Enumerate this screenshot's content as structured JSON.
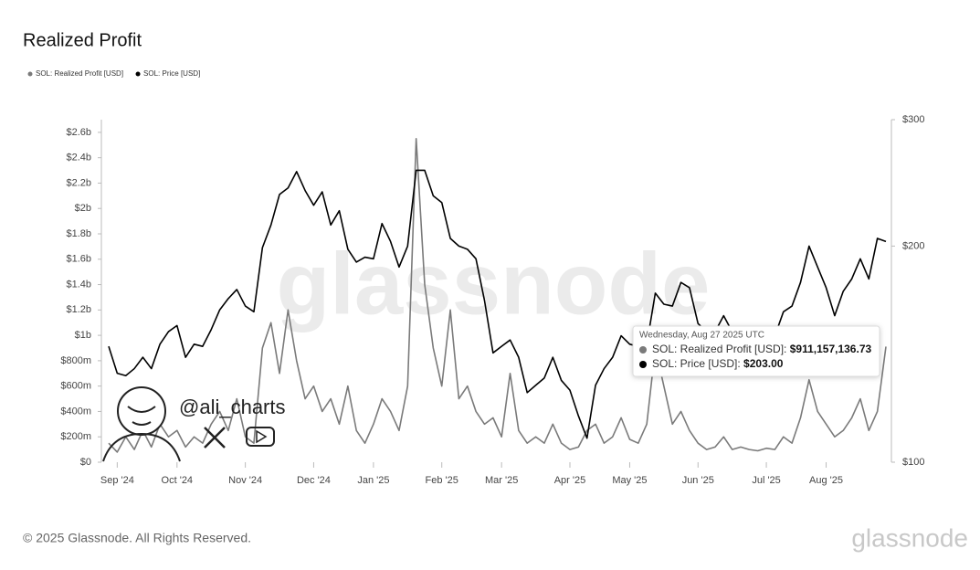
{
  "chart_data": {
    "type": "line",
    "title": "Realized Profit",
    "categories": [
      null,
      "Sep '24",
      null,
      null,
      null,
      null,
      null,
      null,
      "Oct '24",
      null,
      null,
      null,
      null,
      null,
      null,
      null,
      "Nov '24",
      null,
      null,
      null,
      null,
      null,
      null,
      null,
      "Dec '24",
      null,
      null,
      null,
      null,
      null,
      null,
      "Jan '25",
      null,
      null,
      null,
      null,
      null,
      null,
      null,
      "Feb '25",
      null,
      null,
      null,
      null,
      null,
      null,
      "Mar '25",
      null,
      null,
      null,
      null,
      null,
      null,
      null,
      "Apr '25",
      null,
      null,
      null,
      null,
      null,
      null,
      "May '25",
      null,
      null,
      null,
      null,
      null,
      null,
      null,
      "Jun '25",
      null,
      null,
      null,
      null,
      null,
      null,
      null,
      "Jul '25",
      null,
      null,
      null,
      null,
      null,
      null,
      "Aug '25",
      null,
      null,
      null,
      null,
      null,
      null,
      null
    ],
    "series": [
      {
        "name": "SOL: Realized Profit [USD]",
        "color": "#7a7a7a",
        "axis": "y",
        "values": [
          150000000,
          80000000,
          200000000,
          100000000,
          250000000,
          120000000,
          300000000,
          200000000,
          250000000,
          120000000,
          200000000,
          150000000,
          300000000,
          400000000,
          250000000,
          500000000,
          200000000,
          150000000,
          900000000,
          1100000000,
          700000000,
          1200000000,
          800000000,
          500000000,
          600000000,
          400000000,
          500000000,
          300000000,
          600000000,
          250000000,
          150000000,
          300000000,
          500000000,
          400000000,
          250000000,
          600000000,
          2550000000,
          1400000000,
          900000000,
          600000000,
          1200000000,
          500000000,
          600000000,
          400000000,
          300000000,
          350000000,
          200000000,
          700000000,
          250000000,
          150000000,
          200000000,
          150000000,
          300000000,
          150000000,
          100000000,
          120000000,
          250000000,
          300000000,
          150000000,
          200000000,
          350000000,
          180000000,
          150000000,
          300000000,
          900000000,
          600000000,
          300000000,
          400000000,
          250000000,
          150000000,
          100000000,
          120000000,
          200000000,
          100000000,
          120000000,
          100000000,
          90000000,
          110000000,
          100000000,
          200000000,
          150000000,
          350000000,
          650000000,
          400000000,
          300000000,
          200000000,
          250000000,
          350000000,
          500000000,
          250000000,
          400000000,
          911157136.73
        ]
      },
      {
        "name": "SOL: Price [USD]",
        "color": "#000000",
        "axis": "y2",
        "values": [
          145,
          133,
          132,
          135,
          140,
          135,
          146,
          152,
          155,
          140,
          146,
          145,
          153,
          163,
          169,
          174,
          165,
          162,
          199,
          214,
          236,
          241,
          254,
          239,
          228,
          238,
          214,
          224,
          198,
          190,
          193,
          192,
          215,
          203,
          187,
          200,
          255,
          255,
          235,
          230,
          205,
          200,
          198,
          192,
          168,
          142,
          145,
          148,
          140,
          125,
          128,
          131,
          140,
          130,
          126,
          116,
          108,
          128,
          135,
          140,
          150,
          146,
          145,
          146,
          172,
          166,
          165,
          178,
          175,
          156,
          152,
          152,
          160,
          152,
          140,
          145,
          150,
          150,
          150,
          162,
          165,
          178,
          200,
          187,
          175,
          160,
          173,
          180,
          192,
          180,
          205,
          203
        ]
      }
    ],
    "ylim": [
      0,
      2700000000
    ],
    "yticks": [
      {
        "value": 0,
        "label": "$0"
      },
      {
        "value": 200000000,
        "label": "$200m"
      },
      {
        "value": 400000000,
        "label": "$400m"
      },
      {
        "value": 600000000,
        "label": "$600m"
      },
      {
        "value": 800000000,
        "label": "$800m"
      },
      {
        "value": 1000000000,
        "label": "$1b"
      },
      {
        "value": 1200000000,
        "label": "$1.2b"
      },
      {
        "value": 1400000000,
        "label": "$1.4b"
      },
      {
        "value": 1600000000,
        "label": "$1.6b"
      },
      {
        "value": 1800000000,
        "label": "$1.8b"
      },
      {
        "value": 2000000000,
        "label": "$2b"
      },
      {
        "value": 2200000000,
        "label": "$2.2b"
      },
      {
        "value": 2400000000,
        "label": "$2.4b"
      },
      {
        "value": 2600000000,
        "label": "$2.6b"
      }
    ],
    "y2lim": [
      100,
      300
    ],
    "y2ticks": [
      {
        "value": 100,
        "label": "$100"
      },
      {
        "value": 200,
        "label": "$200"
      },
      {
        "value": 300,
        "label": "$300"
      }
    ],
    "y2scale": "log",
    "legend": "top-left",
    "tooltip": {
      "title": "Wednesday, Aug 27 2025 UTC",
      "rows": [
        {
          "label": "SOL: Realized Profit [USD]:",
          "value": "$911,157,136.73"
        },
        {
          "label": "SOL: Price [USD]:",
          "value": "$203.00"
        }
      ]
    }
  },
  "watermark": "glassnode",
  "footer": {
    "copyright": "© 2025 Glassnode. All Rights Reserved.",
    "logo": "glassnode"
  },
  "branding": {
    "handle": "@ali_charts"
  }
}
